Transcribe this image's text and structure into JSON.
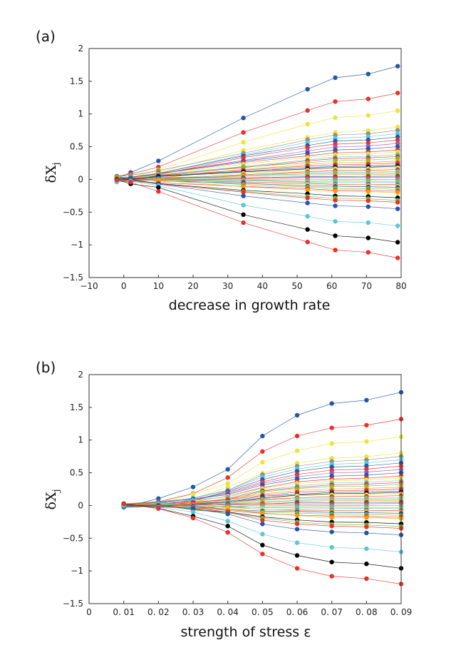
{
  "chart_data": [
    {
      "type": "line",
      "panel_label": "(a)",
      "xlabel": "decrease in growth rate",
      "ylabel": "δX",
      "ylabel_sub": "j",
      "xlim": [
        -10,
        80
      ],
      "ylim": [
        -1.5,
        2
      ],
      "xticks": [
        -10,
        0,
        10,
        20,
        30,
        40,
        50,
        60,
        70,
        80
      ],
      "xtick_labels": [
        "−10",
        "0",
        "10",
        "20",
        "30",
        "40",
        "50",
        "60",
        "70",
        "80"
      ],
      "yticks": [
        -1.5,
        -1,
        -0.5,
        0,
        0.5,
        1,
        1.5,
        2
      ],
      "ytick_labels": [
        "−1.5",
        "−1",
        "−0.5",
        "0",
        "0.5",
        "1",
        "1.5",
        "2"
      ],
      "grid": false,
      "x": [
        -2,
        2,
        10,
        34.5,
        53,
        61,
        70.5,
        79
      ]
    },
    {
      "type": "line",
      "panel_label": "(b)",
      "xlabel": "strength of stress ε",
      "ylabel": "δX",
      "ylabel_sub": "j",
      "xlim": [
        0,
        0.09
      ],
      "ylim": [
        -1.5,
        2
      ],
      "xticks": [
        0,
        0.01,
        0.02,
        0.03,
        0.04,
        0.05,
        0.06,
        0.07,
        0.08,
        0.09
      ],
      "xtick_labels": [
        "0",
        "0. 01",
        "0. 02",
        "0. 03",
        "0. 04",
        "0. 05",
        "0. 06",
        "0. 07",
        "0. 08",
        "0. 09"
      ],
      "yticks": [
        -1.5,
        -1,
        -0.5,
        0,
        0.5,
        1,
        1.5,
        2
      ],
      "ytick_labels": [
        "−1.5",
        "−1",
        "−0.5",
        "0",
        "0.5",
        "1",
        "1.5",
        "2"
      ],
      "grid": false,
      "x": [
        0.01,
        0.02,
        0.03,
        0.04,
        0.05,
        0.06,
        0.07,
        0.08,
        0.09
      ]
    }
  ],
  "series_shared": [
    {
      "color": "#2356a8",
      "final": 1.73
    },
    {
      "color": "#e8312b",
      "final": 1.32
    },
    {
      "color": "#f0e23a",
      "final": 1.05
    },
    {
      "color": "#f0e23a",
      "final": 0.8
    },
    {
      "color": "#8c8c8c",
      "final": 0.75
    },
    {
      "color": "#5cc6d6",
      "final": 0.7
    },
    {
      "color": "#2356a8",
      "final": 0.65
    },
    {
      "color": "#e8312b",
      "final": 0.6
    },
    {
      "color": "#9b59b6",
      "final": 0.55
    },
    {
      "color": "#2356a8",
      "final": 0.5
    },
    {
      "color": "#e8312b",
      "final": 0.45
    },
    {
      "color": "#f0e23a",
      "final": 0.42
    },
    {
      "color": "#5cc6d6",
      "final": 0.38
    },
    {
      "color": "#e8312b",
      "final": 0.35
    },
    {
      "color": "#6bbf3a",
      "final": 0.32
    },
    {
      "color": "#f39c12",
      "final": 0.28
    },
    {
      "color": "#e8312b",
      "final": 0.25
    },
    {
      "color": "#2356a8",
      "final": 0.22
    },
    {
      "color": "#000000",
      "final": 0.2
    },
    {
      "color": "#f0e23a",
      "final": 0.18
    },
    {
      "color": "#e8312b",
      "final": 0.15
    },
    {
      "color": "#5cc6d6",
      "final": 0.12
    },
    {
      "color": "#6bbf3a",
      "final": 0.1
    },
    {
      "color": "#f39c12",
      "final": 0.08
    },
    {
      "color": "#2356a8",
      "final": 0.05
    },
    {
      "color": "#e8312b",
      "final": 0.03
    },
    {
      "color": "#8c8c8c",
      "final": 0.0
    },
    {
      "color": "#6bbf3a",
      "final": -0.03
    },
    {
      "color": "#5cc6d6",
      "final": -0.05
    },
    {
      "color": "#e8312b",
      "final": -0.08
    },
    {
      "color": "#f0e23a",
      "final": -0.1
    },
    {
      "color": "#2356a8",
      "final": -0.12
    },
    {
      "color": "#6bbf3a",
      "final": -0.15
    },
    {
      "color": "#e8312b",
      "final": -0.18
    },
    {
      "color": "#f39c12",
      "final": -0.2
    },
    {
      "color": "#000000",
      "final": -0.28
    },
    {
      "color": "#6bbf3a",
      "final": -0.32
    },
    {
      "color": "#e8312b",
      "final": -0.35
    },
    {
      "color": "#2356a8",
      "final": -0.45
    },
    {
      "color": "#5cc6d6",
      "final": -0.71
    },
    {
      "color": "#000000",
      "final": -0.96
    },
    {
      "color": "#e8312b",
      "final": -1.2
    }
  ],
  "profile_a": [
    0.02,
    0.05,
    0.15,
    0.55,
    0.8,
    0.9,
    0.93,
    1.0
  ],
  "profile_b": [
    0.0,
    0.05,
    0.15,
    0.33,
    0.62,
    0.8,
    0.9,
    0.93,
    1.0
  ]
}
